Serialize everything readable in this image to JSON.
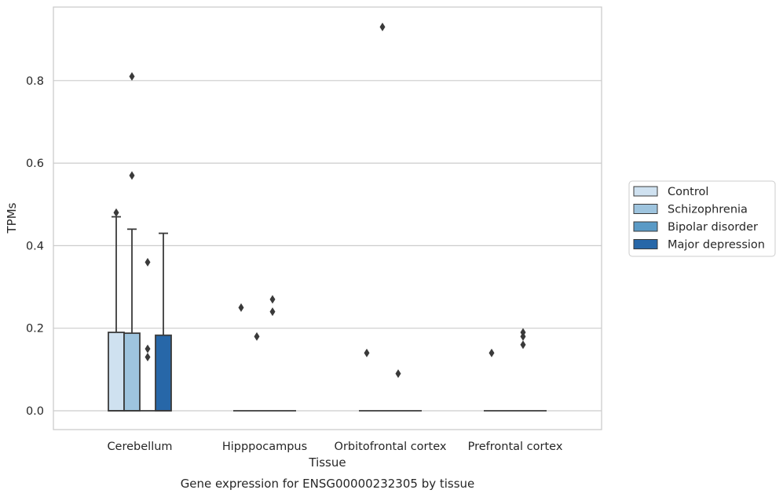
{
  "chart_data": {
    "type": "boxplot",
    "xlabel": "Tissue",
    "ylabel": "TPMs",
    "caption": "Gene expression for ENSG00000232305 by tissue",
    "categories": [
      "Cerebellum",
      "Hipppocampus",
      "Orbitofrontal cortex",
      "Prefrontal cortex"
    ],
    "ylim": [
      -0.045,
      0.975
    ],
    "yticks": [
      0.0,
      0.2,
      0.4,
      0.6,
      0.8
    ],
    "ytick_labels": [
      "0.0",
      "0.2",
      "0.4",
      "0.6",
      "0.8"
    ],
    "grid": "horizontal",
    "legend_position": "right",
    "series": [
      {
        "name": "Control",
        "color": "#cfe1f0",
        "boxes": [
          {
            "q1": 0.0,
            "median": 0.0,
            "q3": 0.19,
            "whisker_low": 0.0,
            "whisker_high": 0.47,
            "outliers": [
              0.48
            ]
          },
          {
            "q1": 0.0,
            "median": 0.0,
            "q3": 0.0,
            "whisker_low": 0.0,
            "whisker_high": 0.0,
            "outliers": [
              0.25
            ]
          },
          {
            "q1": 0.0,
            "median": 0.0,
            "q3": 0.0,
            "whisker_low": 0.0,
            "whisker_high": 0.0,
            "outliers": [
              0.14
            ]
          },
          {
            "q1": 0.0,
            "median": 0.0,
            "q3": 0.0,
            "whisker_low": 0.0,
            "whisker_high": 0.0,
            "outliers": [
              0.14
            ]
          }
        ]
      },
      {
        "name": "Schizophrenia",
        "color": "#9ec4de",
        "boxes": [
          {
            "q1": 0.0,
            "median": 0.0,
            "q3": 0.188,
            "whisker_low": 0.0,
            "whisker_high": 0.44,
            "outliers": [
              0.57,
              0.81
            ]
          },
          {
            "q1": 0.0,
            "median": 0.0,
            "q3": 0.0,
            "whisker_low": 0.0,
            "whisker_high": 0.0,
            "outliers": [
              0.18
            ]
          },
          {
            "q1": 0.0,
            "median": 0.0,
            "q3": 0.0,
            "whisker_low": 0.0,
            "whisker_high": 0.0,
            "outliers": [
              0.93
            ]
          },
          {
            "q1": 0.0,
            "median": 0.0,
            "q3": 0.0,
            "whisker_low": 0.0,
            "whisker_high": 0.0,
            "outliers": []
          }
        ]
      },
      {
        "name": "Bipolar disorder",
        "color": "#5a9ac6",
        "boxes": [
          {
            "q1": 0.0,
            "median": 0.0,
            "q3": 0.0,
            "whisker_low": 0.0,
            "whisker_high": 0.0,
            "outliers": [
              0.13,
              0.15,
              0.36
            ]
          },
          {
            "q1": 0.0,
            "median": 0.0,
            "q3": 0.0,
            "whisker_low": 0.0,
            "whisker_high": 0.0,
            "outliers": [
              0.24,
              0.27
            ]
          },
          {
            "q1": 0.0,
            "median": 0.0,
            "q3": 0.0,
            "whisker_low": 0.0,
            "whisker_high": 0.0,
            "outliers": [
              0.09
            ]
          },
          {
            "q1": 0.0,
            "median": 0.0,
            "q3": 0.0,
            "whisker_low": 0.0,
            "whisker_high": 0.0,
            "outliers": [
              0.16,
              0.18,
              0.19
            ]
          }
        ]
      },
      {
        "name": "Major depression",
        "color": "#2767a8",
        "boxes": [
          {
            "q1": 0.0,
            "median": 0.0,
            "q3": 0.183,
            "whisker_low": 0.0,
            "whisker_high": 0.43,
            "outliers": []
          },
          {
            "q1": 0.0,
            "median": 0.0,
            "q3": 0.0,
            "whisker_low": 0.0,
            "whisker_high": 0.0,
            "outliers": []
          },
          {
            "q1": 0.0,
            "median": 0.0,
            "q3": 0.0,
            "whisker_low": 0.0,
            "whisker_high": 0.0,
            "outliers": []
          },
          {
            "q1": 0.0,
            "median": 0.0,
            "q3": 0.0,
            "whisker_low": 0.0,
            "whisker_high": 0.0,
            "outliers": []
          }
        ]
      }
    ]
  }
}
